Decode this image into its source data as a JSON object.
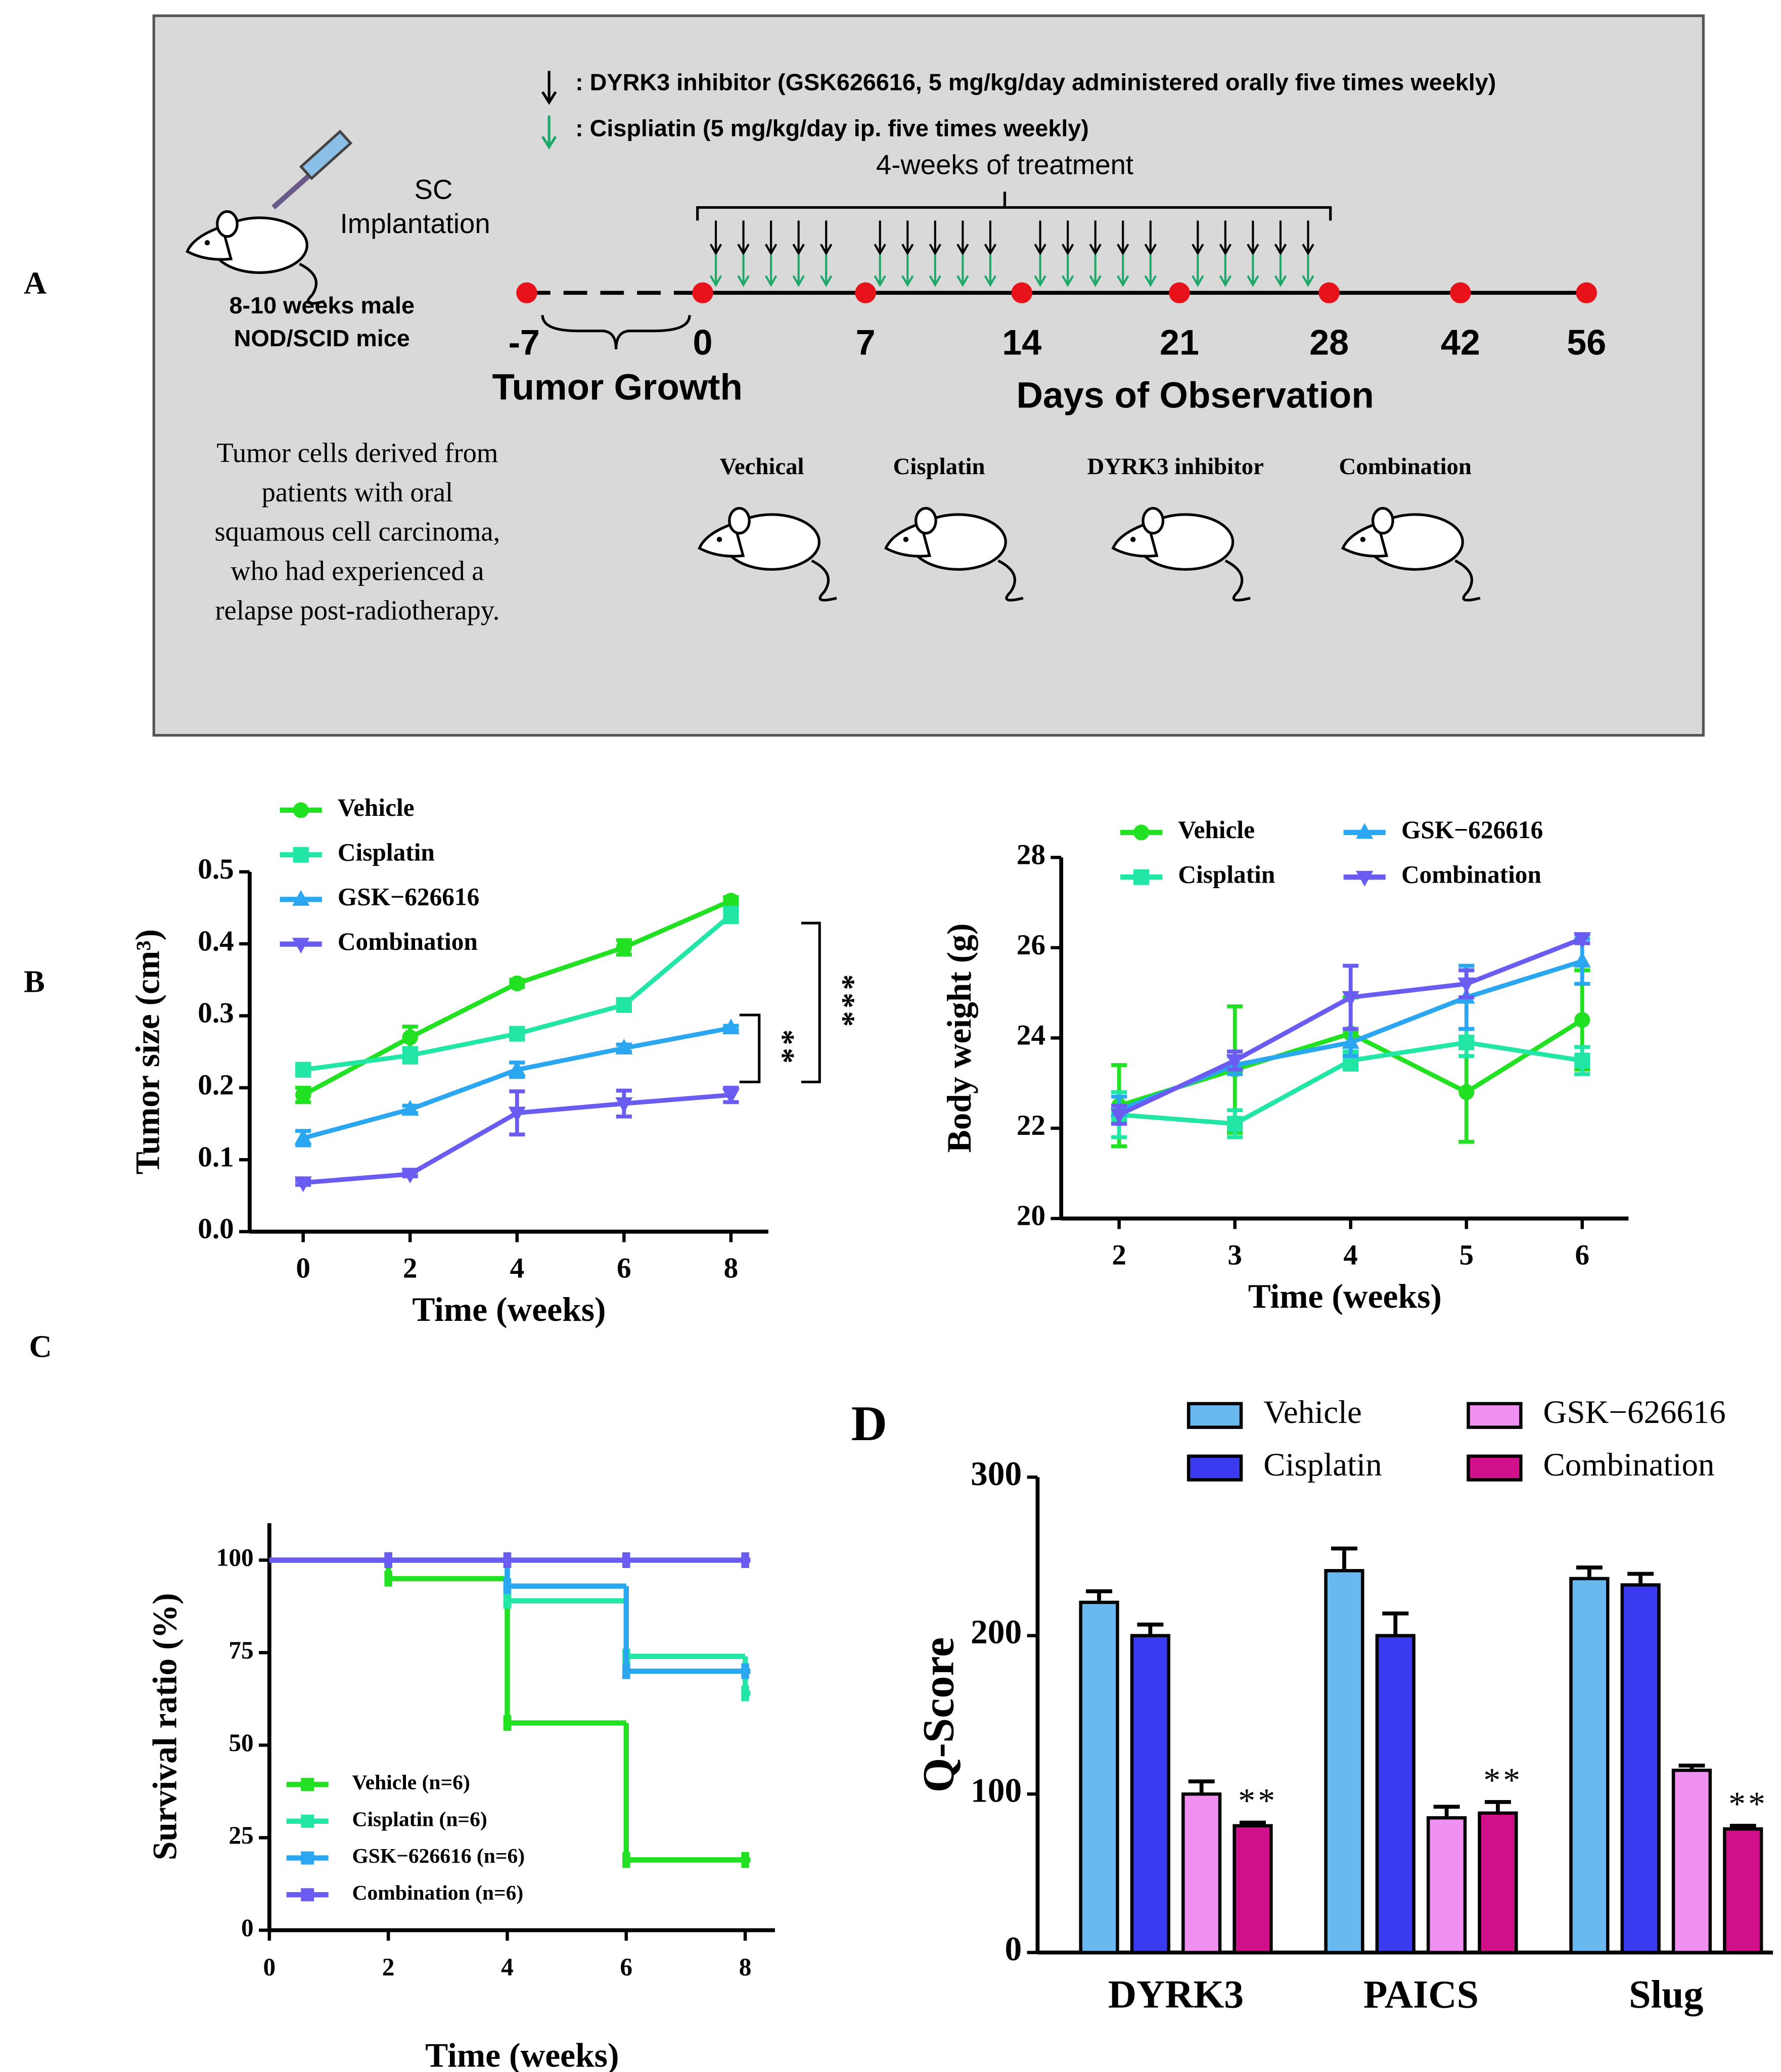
{
  "panel_labels": [
    "A",
    "B",
    "C",
    "D"
  ],
  "diagram": {
    "legend": [
      ": DYRK3 inhibitor (GSK626616, 5 mg/kg/day administered orally five times weekly)",
      ": Cispliatin (5 mg/kg/day ip. five times weekly)"
    ],
    "treatment_label": "4-weeks of treatment",
    "implantation": [
      "SC",
      "Implantation"
    ],
    "mice": [
      "8-10 weeks male",
      "NOD/SCID mice"
    ],
    "timeline": [
      -7,
      0,
      7,
      14,
      21,
      28,
      42,
      56
    ],
    "phases": [
      "Tumor Growth",
      "Days of Observation"
    ],
    "description": [
      "Tumor cells derived from",
      "patients with oral",
      "squamous cell carcinoma,",
      "who had experienced a",
      "relapse post-radiotherapy."
    ],
    "groups": [
      "Vechical",
      "Cisplatin",
      "DYRK3 inhibitor",
      "Combination"
    ]
  },
  "chart_data": [
    {
      "type": "line",
      "xlabel": "Time (weeks)",
      "ylabel": "Tumor size (cm³)",
      "x": [
        0,
        2,
        4,
        6,
        8
      ],
      "xlim": [
        -1,
        8.7
      ],
      "xticks": [
        0,
        2,
        4,
        6,
        8
      ],
      "ylim": [
        0,
        0.5
      ],
      "yticks": [
        {
          "value": 0,
          "label": "0.0"
        },
        0.1,
        0.2,
        0.3,
        0.4,
        0.5
      ],
      "annotations": [
        "***",
        "**"
      ],
      "series": [
        {
          "name": "Vehicle",
          "color": "#22e022",
          "marker": "circle",
          "values": [
            0.19,
            0.27,
            0.345,
            0.395,
            0.46
          ],
          "errors": [
            0.01,
            0.015,
            0.005,
            0.01,
            0.005
          ]
        },
        {
          "name": "Cisplatin",
          "color": "#22e6a6",
          "marker": "square",
          "values": [
            0.225,
            0.245,
            0.275,
            0.315,
            0.44
          ],
          "errors": [
            0.005,
            0.01,
            0.005,
            0.005,
            0.01
          ]
        },
        {
          "name": "GSK−626616",
          "color": "#2ba6f0",
          "marker": "triangle-up",
          "values": [
            0.13,
            0.17,
            0.225,
            0.255,
            0.283
          ],
          "errors": [
            0.01,
            0.005,
            0.01,
            0.005,
            0.003
          ]
        },
        {
          "name": "Combination",
          "color": "#6a5cf0",
          "marker": "triangle-down",
          "values": [
            0.068,
            0.08,
            0.165,
            0.178,
            0.19
          ],
          "errors": [
            0.003,
            0.003,
            0.03,
            0.018,
            0.01
          ]
        }
      ]
    },
    {
      "type": "line",
      "xlabel": "Time (weeks)",
      "ylabel": "Body weight (g)",
      "x": [
        2,
        3,
        4,
        5,
        6
      ],
      "xlim": [
        1.5,
        6.4
      ],
      "xticks": [
        2,
        3,
        4,
        5,
        6
      ],
      "ylim": [
        20,
        28
      ],
      "yticks": [
        20,
        22,
        24,
        26,
        28
      ],
      "series": [
        {
          "name": "Vehicle",
          "color": "#22e022",
          "marker": "circle",
          "values": [
            22.5,
            23.3,
            24.1,
            22.8,
            24.4
          ],
          "errors": [
            0.9,
            1.4,
            0.8,
            1.1,
            1.1
          ]
        },
        {
          "name": "Cisplatin",
          "color": "#22e6a6",
          "marker": "square",
          "values": [
            22.3,
            22.1,
            23.5,
            23.9,
            23.5
          ],
          "errors": [
            0.5,
            0.3,
            0.2,
            0.3,
            0.3
          ]
        },
        {
          "name": "GSK−626616",
          "color": "#2ba6f0",
          "marker": "triangle-up",
          "values": [
            22.4,
            23.4,
            23.9,
            24.9,
            25.7
          ],
          "errors": [
            0.3,
            0.2,
            0.3,
            0.7,
            0.5
          ]
        },
        {
          "name": "Combination",
          "color": "#6a5cf0",
          "marker": "triangle-down",
          "values": [
            22.3,
            23.5,
            24.9,
            25.2,
            26.2
          ],
          "errors": [
            0.2,
            0.2,
            0.7,
            0.3,
            0.1
          ]
        }
      ]
    },
    {
      "type": "step",
      "xlabel": "Time (weeks)",
      "ylabel": "Survival ratio (%)",
      "x": [
        0,
        2,
        4,
        6,
        8
      ],
      "xlim": [
        0,
        8.5
      ],
      "xticks": [
        0,
        2,
        4,
        6,
        8
      ],
      "ylim": [
        0,
        110
      ],
      "yticks": [
        0,
        25,
        50,
        75,
        100
      ],
      "series": [
        {
          "name": "Vehicle (n=6)",
          "color": "#22e022",
          "values": [
            100,
            95,
            56,
            19,
            19
          ]
        },
        {
          "name": "Cisplatin (n=6)",
          "color": "#22e6a6",
          "values": [
            100,
            100,
            89,
            74,
            64
          ]
        },
        {
          "name": "GSK−626616 (n=6)",
          "color": "#2ba6f0",
          "values": [
            100,
            100,
            93,
            70,
            70
          ]
        },
        {
          "name": "Combination (n=6)",
          "color": "#6a5cf0",
          "values": [
            100,
            100,
            100,
            100,
            100
          ]
        }
      ]
    },
    {
      "type": "bar",
      "ylabel": "Q-Score",
      "categories": [
        "DYRK3",
        "PAICS",
        "Slug"
      ],
      "ylim": [
        0,
        300
      ],
      "yticks": [
        0,
        100,
        200,
        300
      ],
      "annotations": [
        "**",
        "**",
        "**"
      ],
      "series": [
        {
          "name": "Vehicle",
          "color": "#6ab8f0",
          "values": [
            221,
            241,
            236
          ],
          "errors": [
            7,
            14,
            7
          ]
        },
        {
          "name": "Cisplatin",
          "color": "#3a3af0",
          "values": [
            200,
            200,
            232
          ],
          "errors": [
            7,
            14,
            7
          ]
        },
        {
          "name": "GSK−626616",
          "color": "#f090f0",
          "values": [
            100,
            85,
            115
          ],
          "errors": [
            8,
            7,
            3
          ]
        },
        {
          "name": "Combination",
          "color": "#d0108a",
          "values": [
            80,
            88,
            78
          ],
          "errors": [
            2,
            7,
            2
          ]
        }
      ]
    }
  ]
}
